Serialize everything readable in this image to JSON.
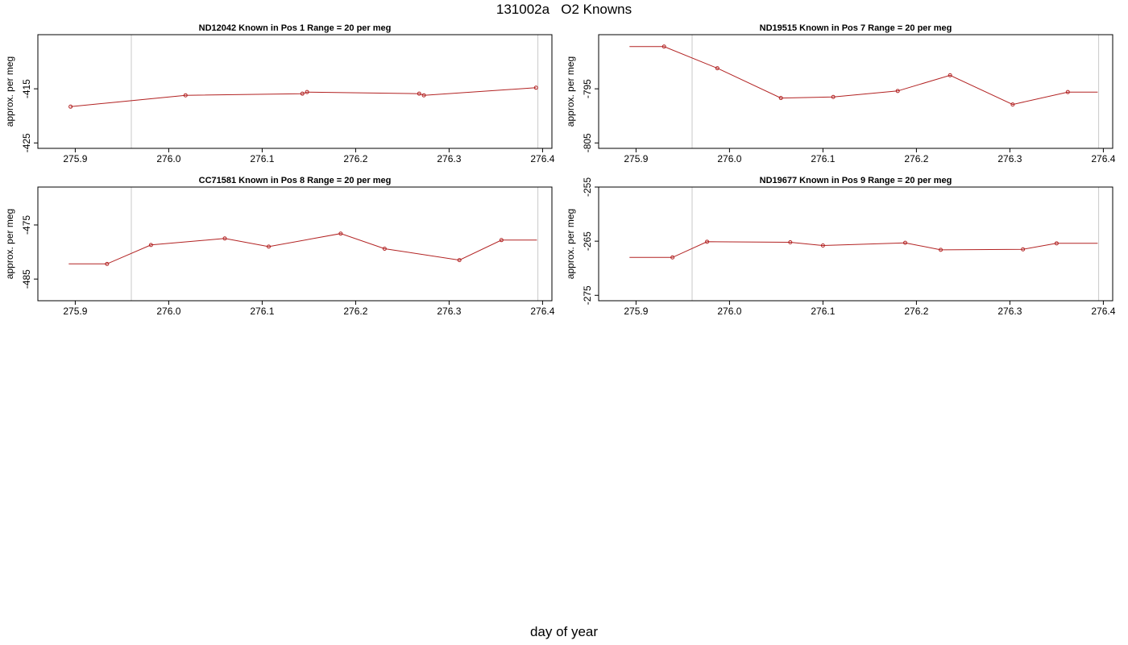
{
  "title": "131002a   O2 Knowns",
  "xlabel": "day of year",
  "colors": {
    "series": "#b22222",
    "reference_line": "#c8c8c8",
    "axis": "#000000"
  },
  "chart_data": [
    {
      "type": "line",
      "title": "ND12042    Known in Pos 1          Range = 20 per meg",
      "ylabel": "approx. per meg",
      "xlim": [
        275.86,
        276.41
      ],
      "ylim": [
        -426,
        -405
      ],
      "xticks": [
        "275.9",
        "276.0",
        "276.1",
        "276.2",
        "276.3",
        "276.4"
      ],
      "xtick_values": [
        275.9,
        276.0,
        276.1,
        276.2,
        276.3,
        276.4
      ],
      "yticks": [
        "-415",
        "-425"
      ],
      "ytick_values": [
        -415,
        -425
      ],
      "reference_lines_x": [
        275.96,
        276.395
      ],
      "grid": false,
      "x": [
        275.895,
        276.018,
        276.143,
        276.148,
        276.268,
        276.273,
        276.393
      ],
      "y": [
        -418.3,
        -416.2,
        -415.9,
        -415.6,
        -415.9,
        -416.2,
        -414.8
      ],
      "show_markers": [
        true,
        true,
        true,
        true,
        true,
        true,
        true
      ]
    },
    {
      "type": "line",
      "title": "ND19515    Known in Pos 7          Range = 20 per meg",
      "ylabel": "approx. per meg",
      "xlim": [
        275.86,
        276.41
      ],
      "ylim": [
        -806,
        -785
      ],
      "xticks": [
        "275.9",
        "276.0",
        "276.1",
        "276.2",
        "276.3",
        "276.4"
      ],
      "xtick_values": [
        275.9,
        276.0,
        276.1,
        276.2,
        276.3,
        276.4
      ],
      "yticks": [
        "-795",
        "-805"
      ],
      "yticks_values_note": "",
      "ytick_values": [
        -795,
        -805
      ],
      "reference_lines_x": [
        275.96,
        276.395
      ],
      "grid": false,
      "x": [
        275.893,
        275.93,
        275.987,
        276.055,
        276.111,
        276.18,
        276.236,
        276.303,
        276.362,
        276.394
      ],
      "y": [
        -787.2,
        -787.2,
        -791.2,
        -796.7,
        -796.5,
        -795.4,
        -792.5,
        -797.9,
        -795.6,
        -795.6
      ],
      "show_markers": [
        false,
        true,
        true,
        true,
        true,
        true,
        true,
        true,
        true,
        false
      ]
    },
    {
      "type": "line",
      "title": "CC71581    Known in Pos 8          Range = 20 per meg",
      "ylabel": "approx. per meg",
      "xlim": [
        275.86,
        276.41
      ],
      "ylim": [
        -489,
        -468
      ],
      "xticks": [
        "275.9",
        "276.0",
        "276.1",
        "276.2",
        "276.3",
        "276.4"
      ],
      "xtick_values": [
        275.9,
        276.0,
        276.1,
        276.2,
        276.3,
        276.4
      ],
      "yticks": [
        "-475",
        "-485"
      ],
      "ytick_values": [
        -475,
        -485
      ],
      "reference_lines_x": [
        275.96,
        276.395
      ],
      "grid": false,
      "x": [
        275.893,
        275.934,
        275.981,
        276.06,
        276.107,
        276.184,
        276.231,
        276.311,
        276.356,
        276.394
      ],
      "y": [
        -482.2,
        -482.2,
        -478.7,
        -477.5,
        -479.0,
        -476.6,
        -479.4,
        -481.5,
        -477.8,
        -477.8
      ],
      "show_markers": [
        false,
        true,
        true,
        true,
        true,
        true,
        true,
        true,
        true,
        false
      ]
    },
    {
      "type": "line",
      "title": "ND19677    Known in Pos 9          Range = 20 per meg",
      "ylabel": "approx. per meg",
      "xlim": [
        275.86,
        276.41
      ],
      "ylim": [
        -276,
        -255
      ],
      "xticks": [
        "275.9",
        "276.0",
        "276.1",
        "276.2",
        "276.3",
        "276.4"
      ],
      "xtick_values": [
        275.9,
        276.0,
        276.1,
        276.2,
        276.3,
        276.4
      ],
      "yticks": [
        "-255",
        "-265",
        "-275"
      ],
      "ytick_values": [
        -255,
        -265,
        -275
      ],
      "reference_lines_x": [
        275.96,
        276.395
      ],
      "grid": false,
      "x": [
        275.893,
        275.939,
        275.976,
        276.065,
        276.1,
        276.188,
        276.226,
        276.314,
        276.35,
        276.394
      ],
      "y": [
        -268.0,
        -268.0,
        -265.1,
        -265.2,
        -265.8,
        -265.3,
        -266.6,
        -266.5,
        -265.4,
        -265.4
      ],
      "show_markers": [
        false,
        true,
        true,
        true,
        true,
        true,
        true,
        true,
        true,
        false
      ]
    }
  ]
}
